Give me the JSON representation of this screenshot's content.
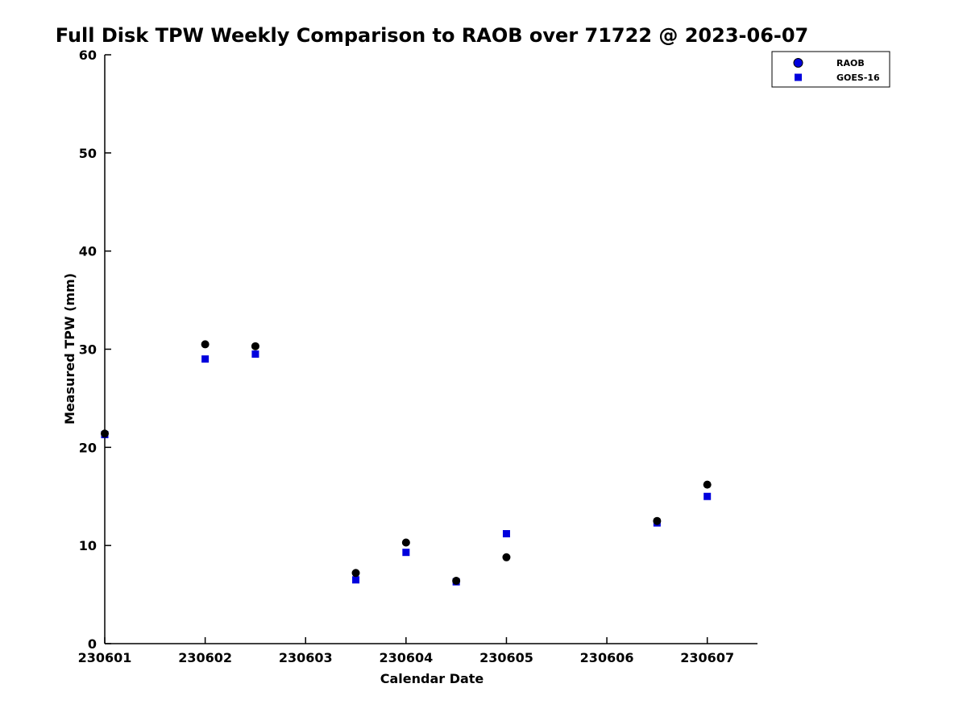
{
  "figure": {
    "title": "Full Disk TPW Weekly Comparison to RAOB over 71722 @ 2023-06-07",
    "xlabel": "Calendar Date",
    "ylabel": "Measured TPW (mm)"
  },
  "chart_data": {
    "type": "scatter",
    "title": "Full Disk TPW Weekly Comparison to RAOB over 71722 @ 2023-06-07",
    "xlabel": "Calendar Date",
    "ylabel": "Measured TPW (mm)",
    "grid": false,
    "legend_position": "top-right",
    "xlim": [
      0,
      6.5
    ],
    "ylim": [
      0,
      60
    ],
    "y_ticks": [
      0,
      10,
      20,
      30,
      40,
      50,
      60
    ],
    "x_tick_values": [
      0,
      1,
      2,
      3,
      4,
      5,
      6
    ],
    "x_tick_labels": [
      "230601",
      "230602",
      "230603",
      "230604",
      "230605",
      "230606",
      "230607"
    ],
    "series": [
      {
        "name": "RAOB",
        "marker": "circle",
        "color": "#000000",
        "legend_marker_color": "#0000dd",
        "x": [
          0,
          1,
          1.5,
          2.5,
          3,
          3.5,
          4,
          5.5,
          6
        ],
        "y": [
          21.4,
          30.5,
          30.3,
          7.2,
          10.3,
          6.4,
          8.8,
          12.5,
          16.2
        ]
      },
      {
        "name": "GOES-16",
        "marker": "square",
        "color": "#0000dd",
        "legend_marker_color": "#0000dd",
        "x": [
          0,
          1,
          1.5,
          2.5,
          3,
          3.5,
          4,
          5.5,
          6
        ],
        "y": [
          21.3,
          29.0,
          29.5,
          6.5,
          9.3,
          6.3,
          11.2,
          12.3,
          15.0
        ]
      }
    ]
  }
}
